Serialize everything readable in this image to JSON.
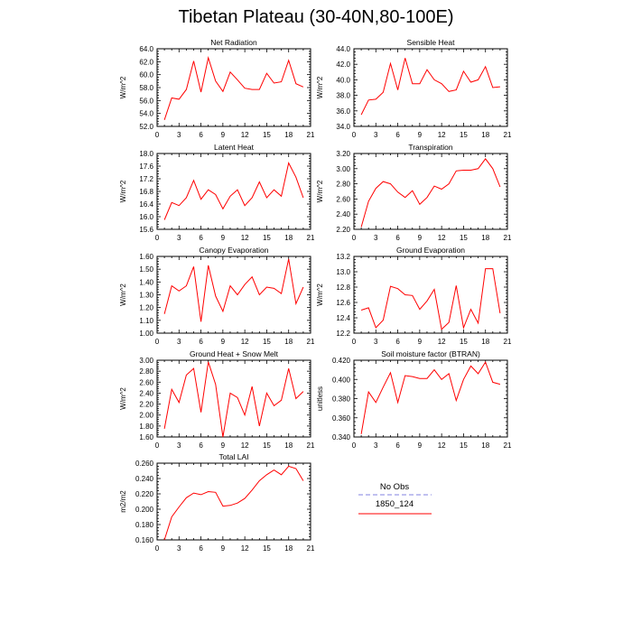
{
  "title": "Tibetan Plateau (30-40N,80-100E)",
  "colors": {
    "model": "#ff0000",
    "obs": "#9a9ae6",
    "axis": "#000000"
  },
  "legend": {
    "obs_label": "No Obs",
    "model_label": "1850_124"
  },
  "chart_data": [
    {
      "type": "line",
      "title": "Net Radiation",
      "ylabel": "W/m^2",
      "xlim": [
        0,
        21
      ],
      "xticks": [
        "0",
        "3",
        "6",
        "9",
        "12",
        "15",
        "18",
        "21"
      ],
      "ylim": [
        52,
        64
      ],
      "yticks": [
        "52.0",
        "54.0",
        "56.0",
        "58.0",
        "60.0",
        "62.0",
        "64.0"
      ],
      "series": [
        {
          "x": [
            1,
            2,
            3,
            4,
            5,
            6,
            7,
            8,
            9,
            10,
            11,
            12,
            13,
            14,
            15,
            16,
            17,
            18,
            19,
            20
          ],
          "values": [
            53.0,
            56.4,
            56.2,
            57.7,
            62.1,
            57.3,
            62.6,
            59.0,
            57.4,
            60.4,
            59.2,
            57.9,
            57.7,
            57.7,
            60.2,
            58.7,
            58.9,
            62.2,
            58.6,
            58.1
          ]
        }
      ]
    },
    {
      "type": "line",
      "title": "Sensible Heat",
      "ylabel": "W/m^2",
      "xlim": [
        0,
        21
      ],
      "xticks": [
        "0",
        "3",
        "6",
        "9",
        "12",
        "15",
        "18",
        "21"
      ],
      "ylim": [
        34,
        44
      ],
      "yticks": [
        "34.0",
        "36.0",
        "38.0",
        "40.0",
        "42.0",
        "44.0"
      ],
      "series": [
        {
          "x": [
            1,
            2,
            3,
            4,
            5,
            6,
            7,
            8,
            9,
            10,
            11,
            12,
            13,
            14,
            15,
            16,
            17,
            18,
            19,
            20
          ],
          "values": [
            35.5,
            37.4,
            37.5,
            38.4,
            42.1,
            38.7,
            42.8,
            39.5,
            39.5,
            41.3,
            40.0,
            39.5,
            38.5,
            38.7,
            41.1,
            39.7,
            40.0,
            41.7,
            39.0,
            39.1
          ]
        }
      ]
    },
    {
      "type": "line",
      "title": "Latent Heat",
      "ylabel": "W/m^2",
      "xlim": [
        0,
        21
      ],
      "xticks": [
        "0",
        "3",
        "6",
        "9",
        "12",
        "15",
        "18",
        "21"
      ],
      "ylim": [
        15.6,
        18.0
      ],
      "yticks": [
        "15.6",
        "16.0",
        "16.4",
        "16.8",
        "17.2",
        "17.6",
        "18.0"
      ],
      "series": [
        {
          "x": [
            1,
            2,
            3,
            4,
            5,
            6,
            7,
            8,
            9,
            10,
            11,
            12,
            13,
            14,
            15,
            16,
            17,
            18,
            19,
            20
          ],
          "values": [
            15.9,
            16.45,
            16.35,
            16.6,
            17.15,
            16.55,
            16.85,
            16.7,
            16.25,
            16.65,
            16.85,
            16.35,
            16.6,
            17.1,
            16.6,
            16.85,
            16.65,
            17.7,
            17.25,
            16.6
          ]
        }
      ]
    },
    {
      "type": "line",
      "title": "Transpiration",
      "ylabel": "W/m^2",
      "xlim": [
        0,
        21
      ],
      "xticks": [
        "0",
        "3",
        "6",
        "9",
        "12",
        "15",
        "18",
        "21"
      ],
      "ylim": [
        2.2,
        3.2
      ],
      "yticks": [
        "2.20",
        "2.40",
        "2.60",
        "2.80",
        "3.00",
        "3.20"
      ],
      "series": [
        {
          "x": [
            1,
            2,
            3,
            4,
            5,
            6,
            7,
            8,
            9,
            10,
            11,
            12,
            13,
            14,
            15,
            16,
            17,
            18,
            19,
            20
          ],
          "values": [
            2.23,
            2.57,
            2.74,
            2.83,
            2.8,
            2.69,
            2.62,
            2.71,
            2.53,
            2.62,
            2.77,
            2.73,
            2.8,
            2.97,
            2.98,
            2.98,
            3.0,
            3.13,
            3.0,
            2.76
          ]
        }
      ]
    },
    {
      "type": "line",
      "title": "Canopy Evaporation",
      "ylabel": "W/m^2",
      "xlim": [
        0,
        21
      ],
      "xticks": [
        "0",
        "3",
        "6",
        "9",
        "12",
        "15",
        "18",
        "21"
      ],
      "ylim": [
        1.0,
        1.6
      ],
      "yticks": [
        "1.00",
        "1.10",
        "1.20",
        "1.30",
        "1.40",
        "1.50",
        "1.60"
      ],
      "series": [
        {
          "x": [
            1,
            2,
            3,
            4,
            5,
            6,
            7,
            8,
            9,
            10,
            11,
            12,
            13,
            14,
            15,
            16,
            17,
            18,
            19,
            20
          ],
          "values": [
            1.15,
            1.37,
            1.33,
            1.37,
            1.52,
            1.09,
            1.53,
            1.29,
            1.17,
            1.37,
            1.3,
            1.38,
            1.44,
            1.3,
            1.36,
            1.35,
            1.31,
            1.58,
            1.23,
            1.36
          ]
        }
      ]
    },
    {
      "type": "line",
      "title": "Ground Evaporation",
      "ylabel": "W/m^2",
      "xlim": [
        0,
        21
      ],
      "xticks": [
        "0",
        "3",
        "6",
        "9",
        "12",
        "15",
        "18",
        "21"
      ],
      "ylim": [
        12.2,
        13.2
      ],
      "yticks": [
        "12.2",
        "12.4",
        "12.6",
        "12.8",
        "13.0",
        "13.2"
      ],
      "series": [
        {
          "x": [
            1,
            2,
            3,
            4,
            5,
            6,
            7,
            8,
            9,
            10,
            11,
            12,
            13,
            14,
            15,
            16,
            17,
            18,
            19,
            20
          ],
          "values": [
            12.5,
            12.53,
            12.27,
            12.37,
            12.81,
            12.78,
            12.7,
            12.69,
            12.51,
            12.62,
            12.77,
            12.25,
            12.34,
            12.82,
            12.27,
            12.51,
            12.33,
            13.04,
            13.04,
            12.46
          ]
        }
      ]
    },
    {
      "type": "line",
      "title": "Ground Heat + Snow Melt",
      "ylabel": "W/m^2",
      "xlim": [
        0,
        21
      ],
      "xticks": [
        "0",
        "3",
        "6",
        "9",
        "12",
        "15",
        "18",
        "21"
      ],
      "ylim": [
        1.6,
        3.0
      ],
      "yticks": [
        "1.60",
        "1.80",
        "2.00",
        "2.20",
        "2.40",
        "2.60",
        "2.80",
        "3.00"
      ],
      "series": [
        {
          "x": [
            1,
            2,
            3,
            4,
            5,
            6,
            7,
            8,
            9,
            10,
            11,
            12,
            13,
            14,
            15,
            16,
            17,
            18,
            19,
            20
          ],
          "values": [
            1.75,
            2.47,
            2.23,
            2.73,
            2.85,
            2.05,
            2.97,
            2.56,
            1.6,
            2.4,
            2.32,
            2.0,
            2.52,
            1.8,
            2.4,
            2.17,
            2.27,
            2.85,
            2.3,
            2.43
          ]
        }
      ]
    },
    {
      "type": "line",
      "title": "Soil moisture factor (BTRAN)",
      "ylabel": "unitless",
      "xlim": [
        0,
        21
      ],
      "xticks": [
        "0",
        "3",
        "6",
        "9",
        "12",
        "15",
        "18",
        "21"
      ],
      "ylim": [
        0.34,
        0.42
      ],
      "yticks": [
        "0.340",
        "0.360",
        "0.380",
        "0.400",
        "0.420"
      ],
      "series": [
        {
          "x": [
            1,
            2,
            3,
            4,
            5,
            6,
            7,
            8,
            9,
            10,
            11,
            12,
            13,
            14,
            15,
            16,
            17,
            18,
            19,
            20
          ],
          "values": [
            0.343,
            0.387,
            0.376,
            0.392,
            0.407,
            0.376,
            0.404,
            0.403,
            0.401,
            0.401,
            0.41,
            0.4,
            0.406,
            0.378,
            0.4,
            0.414,
            0.406,
            0.418,
            0.397,
            0.395
          ]
        }
      ]
    },
    {
      "type": "line",
      "title": "Total LAI",
      "ylabel": "m2/m2",
      "xlim": [
        0,
        21
      ],
      "xticks": [
        "0",
        "3",
        "6",
        "9",
        "12",
        "15",
        "18",
        "21"
      ],
      "ylim": [
        0.16,
        0.26
      ],
      "yticks": [
        "0.160",
        "0.180",
        "0.200",
        "0.220",
        "0.240",
        "0.260"
      ],
      "series": [
        {
          "x": [
            1,
            2,
            3,
            4,
            5,
            6,
            7,
            8,
            9,
            10,
            11,
            12,
            13,
            14,
            15,
            16,
            17,
            18,
            19,
            20
          ],
          "values": [
            0.16,
            0.19,
            0.203,
            0.215,
            0.221,
            0.219,
            0.223,
            0.222,
            0.204,
            0.205,
            0.208,
            0.214,
            0.225,
            0.237,
            0.245,
            0.251,
            0.245,
            0.256,
            0.253,
            0.237
          ]
        }
      ]
    }
  ]
}
